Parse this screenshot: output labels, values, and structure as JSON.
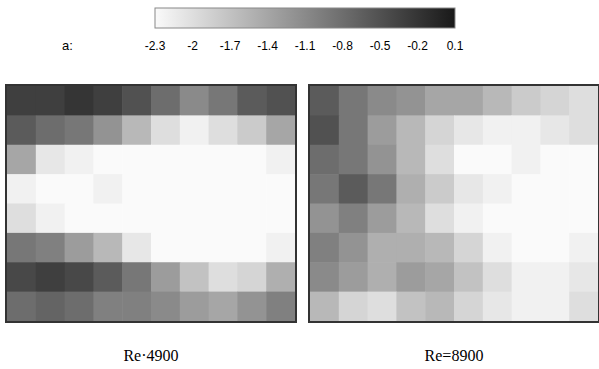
{
  "colorbar": {
    "label": "a:",
    "range": [
      -2.3,
      0.1
    ],
    "ticks": [
      -2.3,
      -2,
      -1.7,
      -1.4,
      -1.1,
      -0.8,
      -0.5,
      -0.2,
      0.1
    ]
  },
  "chart_data": [
    {
      "type": "heatmap",
      "title": "Re·4900",
      "tick_labels": false,
      "cells": [
        [
          -0.3,
          -0.3,
          -0.2,
          -0.3,
          -0.5,
          -0.8,
          -1.1,
          -0.9,
          -0.6,
          -0.5
        ],
        [
          -0.6,
          -0.8,
          -0.9,
          -1.2,
          -1.6,
          -2.0,
          -2.2,
          -2.0,
          -1.8,
          -1.4
        ],
        [
          -1.4,
          -2.1,
          -2.2,
          -2.3,
          -2.3,
          -2.3,
          -2.3,
          -2.3,
          -2.3,
          -2.2
        ],
        [
          -2.2,
          -2.3,
          -2.3,
          -2.2,
          -2.3,
          -2.3,
          -2.3,
          -2.3,
          -2.3,
          -2.3
        ],
        [
          -2.0,
          -2.2,
          -2.3,
          -2.3,
          -2.3,
          -2.3,
          -2.3,
          -2.3,
          -2.3,
          -2.3
        ],
        [
          -0.9,
          -1.0,
          -1.3,
          -1.6,
          -2.1,
          -2.3,
          -2.3,
          -2.3,
          -2.3,
          -2.2
        ],
        [
          -0.4,
          -0.3,
          -0.4,
          -0.6,
          -0.9,
          -1.3,
          -1.7,
          -2.0,
          -1.9,
          -1.5
        ],
        [
          -0.8,
          -0.7,
          -0.8,
          -1.0,
          -1.0,
          -1.1,
          -1.3,
          -1.4,
          -1.2,
          -1.0
        ]
      ]
    },
    {
      "type": "heatmap",
      "title": "Re=8900",
      "tick_labels": false,
      "cells": [
        [
          -0.6,
          -0.9,
          -1.1,
          -1.2,
          -1.4,
          -1.4,
          -1.6,
          -1.8,
          -1.9,
          -2.0
        ],
        [
          -0.5,
          -0.9,
          -1.3,
          -1.6,
          -1.9,
          -2.1,
          -2.2,
          -2.2,
          -2.1,
          -2.0
        ],
        [
          -0.8,
          -0.9,
          -1.2,
          -1.6,
          -2.0,
          -2.3,
          -2.3,
          -2.2,
          -2.3,
          -2.3
        ],
        [
          -0.9,
          -0.6,
          -0.9,
          -1.5,
          -1.8,
          -2.1,
          -2.2,
          -2.3,
          -2.3,
          -2.3
        ],
        [
          -1.2,
          -1.0,
          -1.3,
          -1.6,
          -2.0,
          -2.2,
          -2.3,
          -2.3,
          -2.3,
          -2.3
        ],
        [
          -1.0,
          -1.2,
          -1.5,
          -1.5,
          -1.6,
          -1.9,
          -2.2,
          -2.3,
          -2.3,
          -2.2
        ],
        [
          -1.1,
          -1.3,
          -1.5,
          -1.3,
          -1.4,
          -1.7,
          -2.0,
          -2.2,
          -2.2,
          -2.1
        ],
        [
          -1.6,
          -1.9,
          -2.0,
          -1.7,
          -1.6,
          -1.9,
          -2.1,
          -2.2,
          -2.2,
          -2.0
        ]
      ]
    }
  ]
}
